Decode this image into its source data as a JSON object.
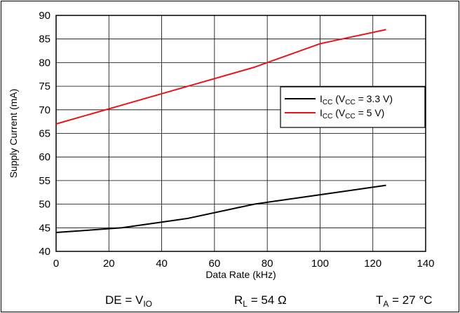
{
  "chart_data": {
    "type": "line",
    "xlabel": "Data Rate (kHz)",
    "ylabel": "Supply Current (mA)",
    "xlim": [
      0,
      140
    ],
    "ylim": [
      40,
      90
    ],
    "xticks": [
      0,
      20,
      40,
      60,
      80,
      100,
      120,
      140
    ],
    "yticks": [
      40,
      45,
      50,
      55,
      60,
      65,
      70,
      75,
      80,
      85,
      90
    ],
    "grid": true,
    "legend_position": "right",
    "series": [
      {
        "name_main": "I",
        "name_sub": "CC",
        "name_mid": " (V",
        "name_sub2": "CC",
        "name_tail": " = 3.3 V)",
        "color": "#000000",
        "x": [
          0,
          25,
          50,
          75,
          100,
          125
        ],
        "y": [
          44,
          45,
          47,
          50,
          52,
          54
        ]
      },
      {
        "name_main": "I",
        "name_sub": "CC",
        "name_mid": " (V",
        "name_sub2": "CC",
        "name_tail": " = 5 V)",
        "color": "#e8141c",
        "x": [
          0,
          25,
          50,
          75,
          100,
          125
        ],
        "y": [
          67,
          71,
          75,
          79,
          84,
          87
        ]
      }
    ],
    "conditions": [
      {
        "main": "DE = V",
        "sub": "IO",
        "tail": ""
      },
      {
        "main": "R",
        "sub": "L",
        "tail": " = 54 Ω"
      },
      {
        "main": "T",
        "sub": "A",
        "tail": " = 27 °C"
      }
    ]
  }
}
